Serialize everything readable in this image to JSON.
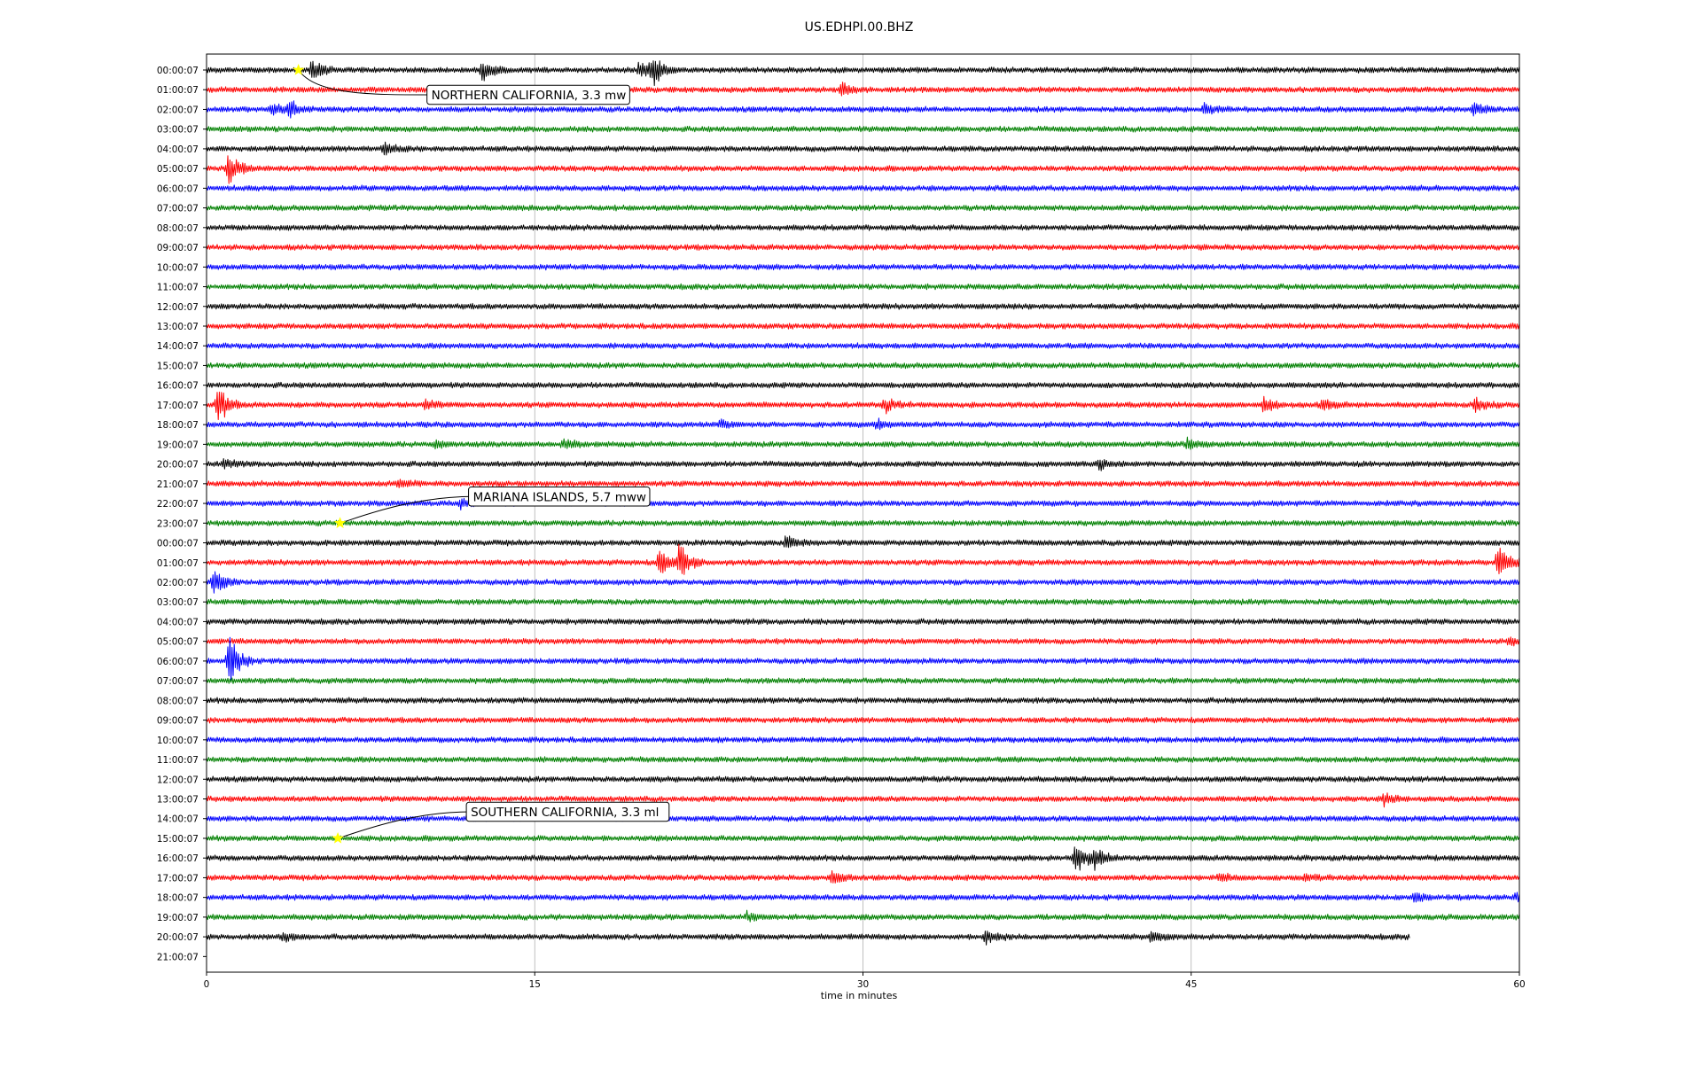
{
  "chart_data": {
    "type": "line",
    "title": "US.EDHPI.00.BHZ",
    "xlabel": "time in minutes",
    "ylabel": "",
    "xlim": [
      0,
      60
    ],
    "xticks": [
      0,
      15,
      30,
      45,
      60
    ],
    "grid": "vertical lines at x ticks",
    "trace_colors": [
      "#000000",
      "#ff0000",
      "#0000ff",
      "#008000"
    ],
    "rows": [
      "00:00:07",
      "01:00:07",
      "02:00:07",
      "03:00:07",
      "04:00:07",
      "05:00:07",
      "06:00:07",
      "07:00:07",
      "08:00:07",
      "09:00:07",
      "10:00:07",
      "11:00:07",
      "12:00:07",
      "13:00:07",
      "14:00:07",
      "15:00:07",
      "16:00:07",
      "17:00:07",
      "18:00:07",
      "19:00:07",
      "20:00:07",
      "21:00:07",
      "22:00:07",
      "23:00:07",
      "00:00:07",
      "01:00:07",
      "02:00:07",
      "03:00:07",
      "04:00:07",
      "05:00:07",
      "06:00:07",
      "07:00:07",
      "08:00:07",
      "09:00:07",
      "10:00:07",
      "11:00:07",
      "12:00:07",
      "13:00:07",
      "14:00:07",
      "15:00:07",
      "16:00:07",
      "17:00:07",
      "18:00:07",
      "19:00:07",
      "20:00:07",
      "21:00:07"
    ],
    "last_trace_end_minute": 55.0,
    "bursts": [
      {
        "row": 0,
        "minute": 4.8,
        "amp": 1.0
      },
      {
        "row": 0,
        "minute": 12.6,
        "amp": 0.9
      },
      {
        "row": 0,
        "minute": 19.8,
        "amp": 1.0
      },
      {
        "row": 0,
        "minute": 20.4,
        "amp": 1.1
      },
      {
        "row": 1,
        "minute": 29.0,
        "amp": 0.7
      },
      {
        "row": 2,
        "minute": 3.0,
        "amp": 0.6
      },
      {
        "row": 2,
        "minute": 3.8,
        "amp": 0.7
      },
      {
        "row": 2,
        "minute": 45.6,
        "amp": 0.5
      },
      {
        "row": 2,
        "minute": 57.9,
        "amp": 0.6
      },
      {
        "row": 4,
        "minute": 8.1,
        "amp": 0.5
      },
      {
        "row": 5,
        "minute": 1.0,
        "amp": 1.5
      },
      {
        "row": 17,
        "minute": 0.5,
        "amp": 1.8
      },
      {
        "row": 17,
        "minute": 10.0,
        "amp": 0.5
      },
      {
        "row": 17,
        "minute": 31.0,
        "amp": 0.6
      },
      {
        "row": 17,
        "minute": 48.3,
        "amp": 0.6
      },
      {
        "row": 17,
        "minute": 51.0,
        "amp": 0.6
      },
      {
        "row": 17,
        "minute": 58.0,
        "amp": 0.6
      },
      {
        "row": 18,
        "minute": 23.5,
        "amp": 0.4
      },
      {
        "row": 18,
        "minute": 30.6,
        "amp": 0.4
      },
      {
        "row": 19,
        "minute": 10.5,
        "amp": 0.4
      },
      {
        "row": 19,
        "minute": 16.3,
        "amp": 0.5
      },
      {
        "row": 19,
        "minute": 44.8,
        "amp": 0.5
      },
      {
        "row": 20,
        "minute": 0.8,
        "amp": 0.4
      },
      {
        "row": 20,
        "minute": 40.8,
        "amp": 0.5
      },
      {
        "row": 21,
        "minute": 8.8,
        "amp": 0.4
      },
      {
        "row": 22,
        "minute": 11.6,
        "amp": 0.4
      },
      {
        "row": 24,
        "minute": 26.5,
        "amp": 0.6
      },
      {
        "row": 25,
        "minute": 20.7,
        "amp": 1.3
      },
      {
        "row": 25,
        "minute": 21.6,
        "amp": 1.6
      },
      {
        "row": 25,
        "minute": 59.0,
        "amp": 1.6
      },
      {
        "row": 26,
        "minute": 0.3,
        "amp": 1.2
      },
      {
        "row": 29,
        "minute": 59.5,
        "amp": 0.4
      },
      {
        "row": 30,
        "minute": 1.0,
        "amp": 2.3
      },
      {
        "row": 37,
        "minute": 53.8,
        "amp": 0.5
      },
      {
        "row": 40,
        "minute": 39.7,
        "amp": 1.7
      },
      {
        "row": 40,
        "minute": 40.6,
        "amp": 0.8
      },
      {
        "row": 41,
        "minute": 28.6,
        "amp": 0.5
      },
      {
        "row": 41,
        "minute": 46.3,
        "amp": 0.5
      },
      {
        "row": 41,
        "minute": 50.2,
        "amp": 0.4
      },
      {
        "row": 42,
        "minute": 55.2,
        "amp": 0.4
      },
      {
        "row": 42,
        "minute": 59.9,
        "amp": 0.4
      },
      {
        "row": 43,
        "minute": 24.7,
        "amp": 0.4
      },
      {
        "row": 44,
        "minute": 3.5,
        "amp": 0.4
      },
      {
        "row": 44,
        "minute": 35.6,
        "amp": 0.6
      },
      {
        "row": 44,
        "minute": 43.2,
        "amp": 0.6
      }
    ],
    "annotations": [
      {
        "text": "NORTHERN CALIFORNIA, 3.3 mw",
        "row": 0,
        "minute": 4.2
      },
      {
        "text": "MARIANA ISLANDS, 5.7 mww",
        "row": 23,
        "minute": 6.1
      },
      {
        "text": "SOUTHERN CALIFORNIA, 3.3 ml",
        "row": 39,
        "minute": 6.0
      }
    ],
    "event_marker_color": "#ffff00"
  }
}
